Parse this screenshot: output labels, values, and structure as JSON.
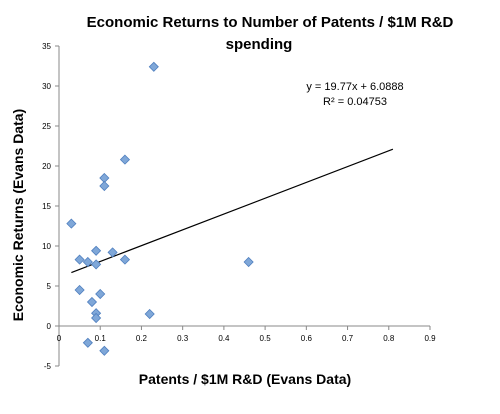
{
  "chart_data": {
    "type": "scatter",
    "title_lines": [
      "Economic Returns to Number of Patents / $1M R&D",
      "spending"
    ],
    "xlabel": "Patents / $1M R&D (Evans Data)",
    "ylabel": "Economic Returns (Evans Data)",
    "xlim": [
      0,
      0.9
    ],
    "ylim": [
      -5,
      35
    ],
    "x_ticks": [
      "0",
      "0.1",
      "0.2",
      "0.3",
      "0.4",
      "0.5",
      "0.6",
      "0.7",
      "0.8",
      "0.9"
    ],
    "y_ticks": [
      "-5",
      "0",
      "5",
      "10",
      "15",
      "20",
      "25",
      "30",
      "35"
    ],
    "grid": false,
    "marker_color": "#7fa7d8",
    "marker_edge": "#4f7fbf",
    "points": [
      {
        "x": 0.03,
        "y": 12.8
      },
      {
        "x": 0.05,
        "y": 8.3
      },
      {
        "x": 0.05,
        "y": 4.5
      },
      {
        "x": 0.07,
        "y": 8.0
      },
      {
        "x": 0.07,
        "y": -2.1
      },
      {
        "x": 0.08,
        "y": 3.0
      },
      {
        "x": 0.09,
        "y": 9.4
      },
      {
        "x": 0.09,
        "y": 7.7
      },
      {
        "x": 0.09,
        "y": 1.6
      },
      {
        "x": 0.09,
        "y": 1.0
      },
      {
        "x": 0.1,
        "y": 4.0
      },
      {
        "x": 0.11,
        "y": 18.5
      },
      {
        "x": 0.11,
        "y": 17.5
      },
      {
        "x": 0.11,
        "y": -3.1
      },
      {
        "x": 0.13,
        "y": 9.2
      },
      {
        "x": 0.16,
        "y": 20.8
      },
      {
        "x": 0.16,
        "y": 8.3
      },
      {
        "x": 0.22,
        "y": 1.5
      },
      {
        "x": 0.23,
        "y": 32.4
      },
      {
        "x": 0.46,
        "y": 8.0
      }
    ],
    "trendline": {
      "slope": 19.77,
      "intercept": 6.0888,
      "x_range": [
        0.03,
        0.81
      ],
      "equation": "y = 19.77x + 6.0888",
      "r_squared": "R² = 0.04753"
    }
  }
}
